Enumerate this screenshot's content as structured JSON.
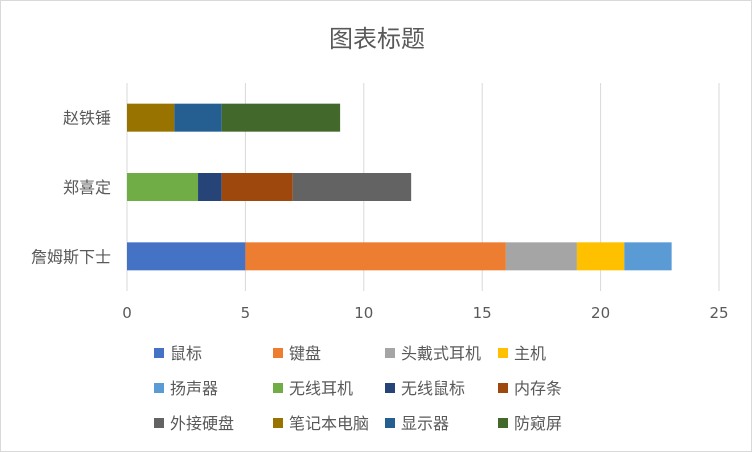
{
  "chart_data": {
    "type": "bar",
    "orientation": "horizontal",
    "stacked": true,
    "title": "图表标题",
    "categories": [
      "詹姆斯下士",
      "郑喜定",
      "赵铁锤"
    ],
    "xlim": [
      0,
      25
    ],
    "xticks": [
      0,
      5,
      10,
      15,
      20,
      25
    ],
    "grid": true,
    "legend_position": "bottom",
    "series": [
      {
        "name": "鼠标",
        "color": "#4472c4",
        "values": [
          5,
          0,
          0
        ]
      },
      {
        "name": "键盘",
        "color": "#ed7d31",
        "values": [
          11,
          0,
          0
        ]
      },
      {
        "name": "头戴式耳机",
        "color": "#a5a5a5",
        "values": [
          3,
          0,
          0
        ]
      },
      {
        "name": "主机",
        "color": "#ffc000",
        "values": [
          2,
          0,
          0
        ]
      },
      {
        "name": "扬声器",
        "color": "#5b9bd5",
        "values": [
          2,
          0,
          0
        ]
      },
      {
        "name": "无线耳机",
        "color": "#70ad47",
        "values": [
          0,
          3,
          0
        ]
      },
      {
        "name": "无线鼠标",
        "color": "#264478",
        "values": [
          0,
          1,
          0
        ]
      },
      {
        "name": "内存条",
        "color": "#9e480e",
        "values": [
          0,
          3,
          0
        ]
      },
      {
        "name": "外接硬盘",
        "color": "#636363",
        "values": [
          0,
          5,
          0
        ]
      },
      {
        "name": "笔记本电脑",
        "color": "#997300",
        "values": [
          0,
          0,
          2
        ]
      },
      {
        "name": "显示器",
        "color": "#255e91",
        "values": [
          0,
          0,
          2
        ]
      },
      {
        "name": "防窥屏",
        "color": "#43682b",
        "values": [
          0,
          0,
          5
        ]
      }
    ]
  }
}
